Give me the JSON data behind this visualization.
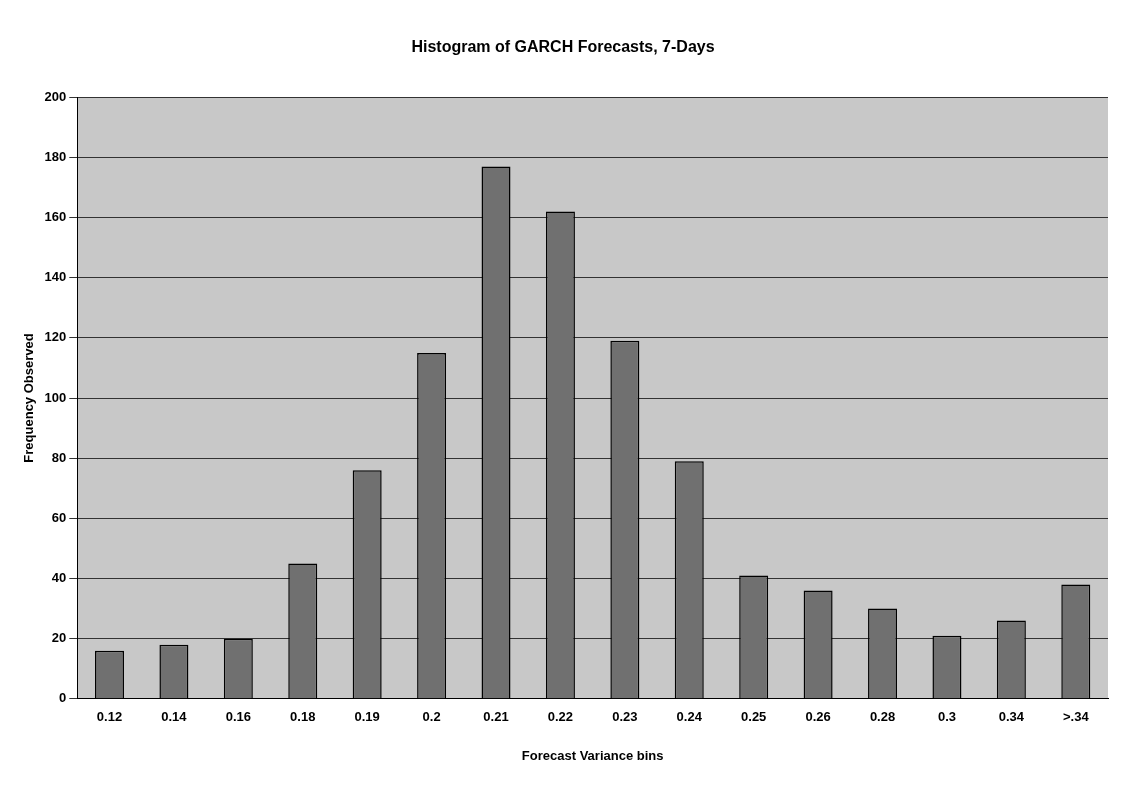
{
  "chart_data": {
    "type": "bar",
    "title": "Histogram of GARCH Forecasts, 7-Days",
    "xlabel": "Forecast Variance bins",
    "ylabel": "Frequency Observed",
    "categories": [
      "0.12",
      "0.14",
      "0.16",
      "0.18",
      "0.19",
      "0.2",
      "0.21",
      "0.22",
      "0.23",
      "0.24",
      "0.25",
      "0.26",
      "0.28",
      "0.3",
      "0.34",
      ">.34"
    ],
    "values": [
      16,
      18,
      20,
      45,
      76,
      115,
      177,
      162,
      119,
      79,
      41,
      36,
      30,
      21,
      26,
      38
    ],
    "color": "#707070",
    "ylim": [
      0,
      200
    ],
    "yticks": [
      0,
      20,
      40,
      60,
      80,
      100,
      120,
      140,
      160,
      180,
      200
    ],
    "grid": "y",
    "legend": false
  }
}
